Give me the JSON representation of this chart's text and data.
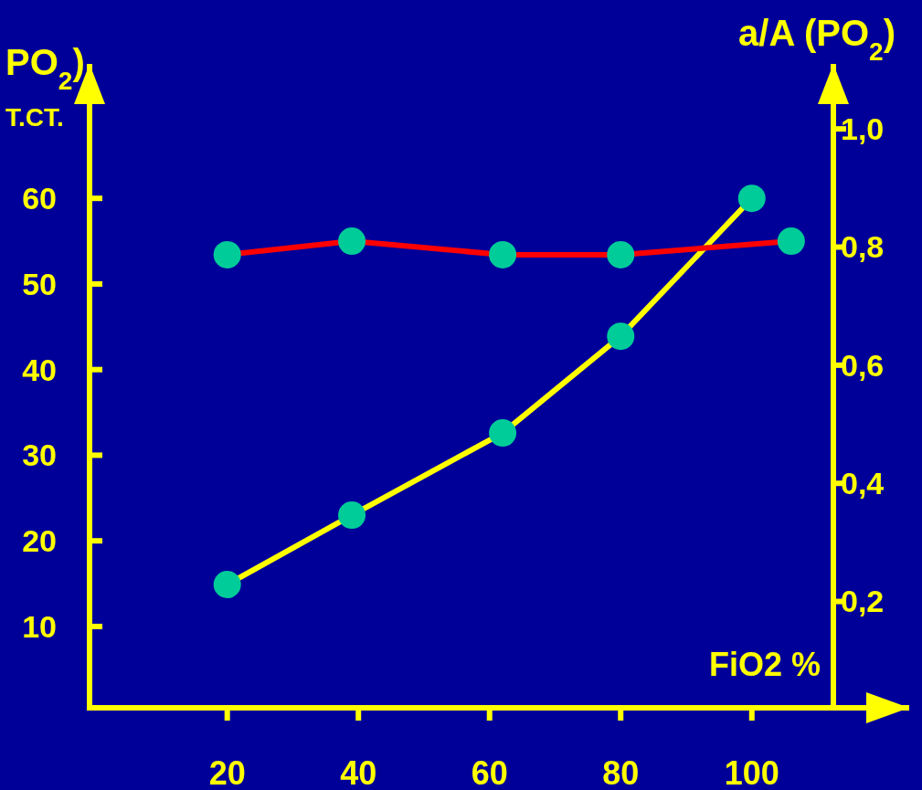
{
  "chart_data": {
    "type": "line",
    "xlabel": "FiO2 %",
    "ylabel": "PO$_{2}$)\nT.CT.",
    "y2label": "a/A (PO$_{2}$)",
    "xlim": [
      -1,
      124
    ],
    "xticks": [
      20,
      40,
      60,
      80,
      100
    ],
    "ylim": [
      0.5,
      75.7
    ],
    "yticks": [
      10,
      20,
      30,
      40,
      50,
      60
    ],
    "y2lim": [
      0.02,
      1.11
    ],
    "y2ticks": [
      {
        "value": 0.2,
        "label": "0,2"
      },
      {
        "value": 0.4,
        "label": "0,4"
      },
      {
        "value": 0.6,
        "label": "0,6"
      },
      {
        "value": 0.8,
        "label": "0,8"
      },
      {
        "value": 1.0,
        "label": "1,0"
      }
    ],
    "grid": false,
    "marker": "circle",
    "line_style": "solid",
    "series": [
      {
        "color": "#ffff00",
        "colors": [
          "#00cc99",
          "#00cc99",
          "#00cc99",
          "#00cc99",
          "#00cc99"
        ],
        "x": [
          20,
          39,
          62,
          80,
          100
        ],
        "values": [
          14.9,
          23,
          32.6,
          43.9,
          60
        ]
      },
      {
        "color": "#ff0000",
        "axis": "y2",
        "colors": [
          "#00cc99",
          "#00cc99",
          "#00cc99",
          "#00cc99",
          "#00cc99"
        ],
        "x": [
          20,
          39,
          62,
          80,
          106
        ],
        "values": [
          0.787,
          0.81,
          0.787,
          0.787,
          0.81
        ]
      }
    ]
  }
}
